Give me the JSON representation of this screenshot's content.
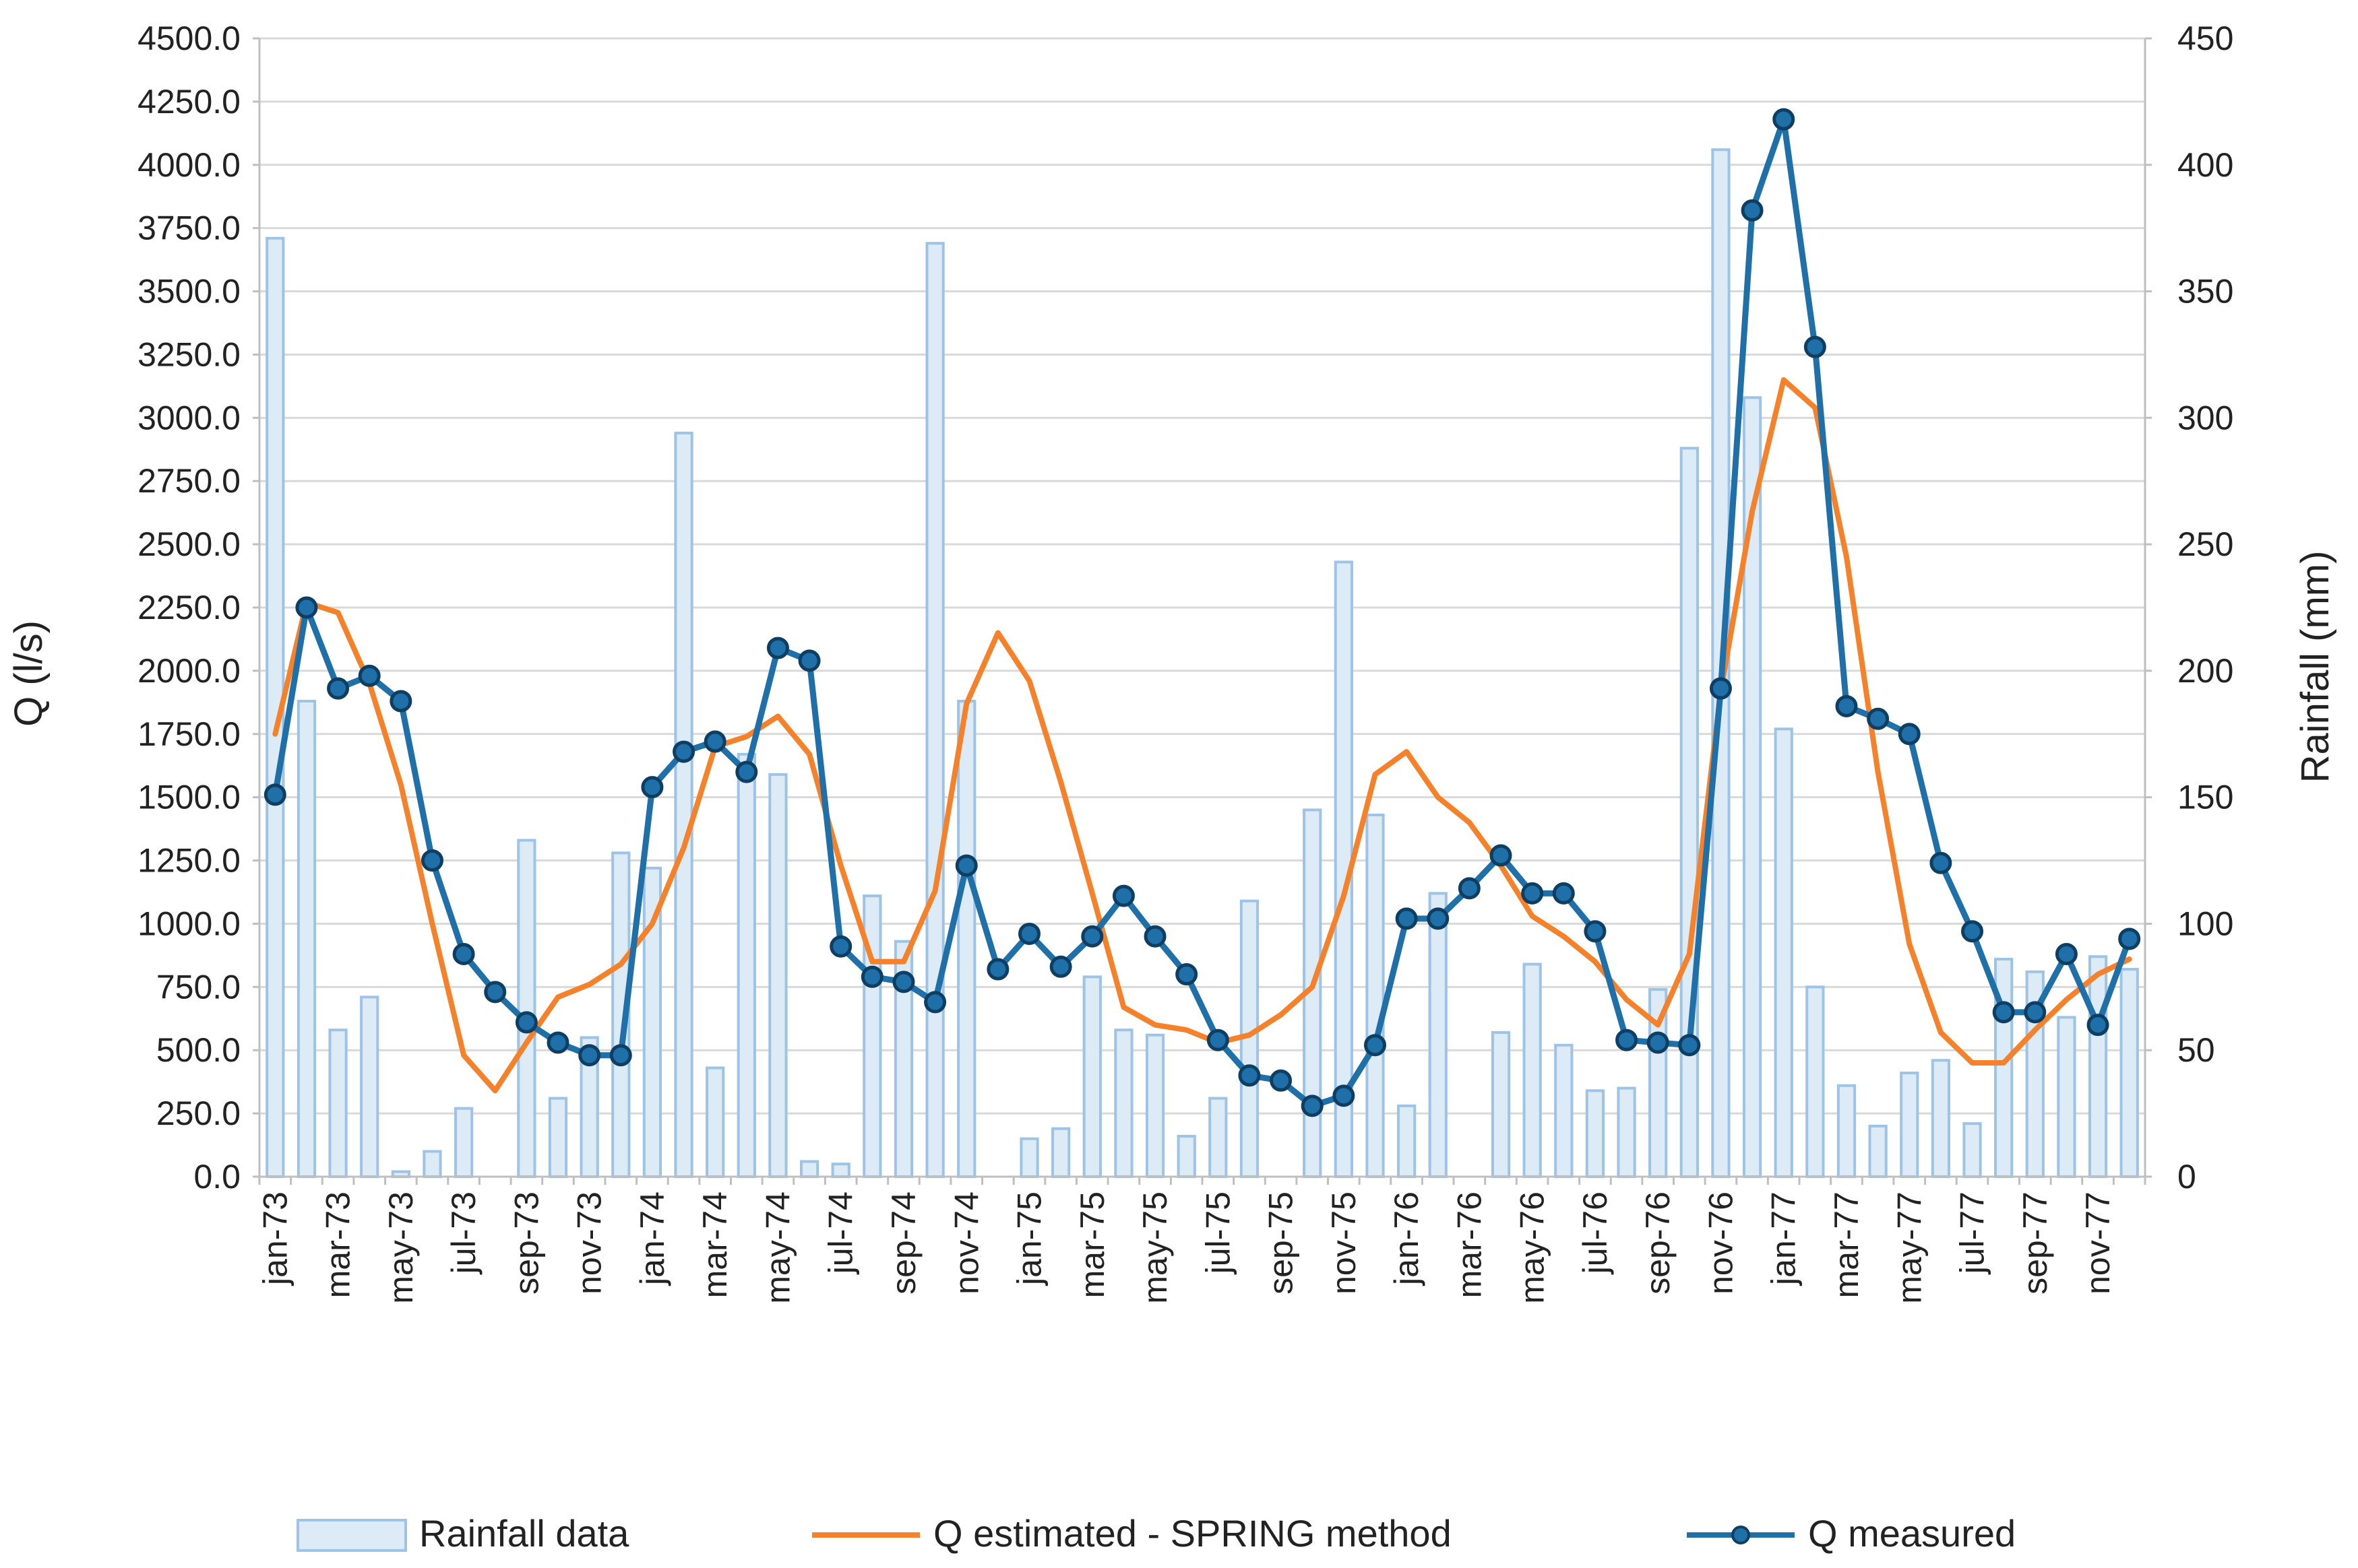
{
  "chart_data": {
    "type": "bar",
    "categories": [
      "jan-73",
      "feb-73",
      "mar-73",
      "apr-73",
      "may-73",
      "jun-73",
      "jul-73",
      "aug-73",
      "sep-73",
      "oct-73",
      "nov-73",
      "dec-73",
      "jan-74",
      "feb-74",
      "mar-74",
      "apr-74",
      "may-74",
      "jun-74",
      "jul-74",
      "aug-74",
      "sep-74",
      "oct-74",
      "nov-74",
      "dec-74",
      "jan-75",
      "feb-75",
      "mar-75",
      "apr-75",
      "may-75",
      "jun-75",
      "jul-75",
      "aug-75",
      "sep-75",
      "oct-75",
      "nov-75",
      "dec-75",
      "jan-76",
      "feb-76",
      "mar-76",
      "apr-76",
      "may-76",
      "jun-76",
      "jul-76",
      "aug-76",
      "sep-76",
      "oct-76",
      "nov-76",
      "dec-76",
      "jan-77",
      "feb-77",
      "mar-77",
      "apr-77",
      "may-77",
      "jun-77",
      "jul-77",
      "aug-77",
      "sep-77",
      "oct-77",
      "nov-77",
      "dec-77"
    ],
    "tick_labels": [
      "jan-73",
      "mar-73",
      "may-73",
      "jul-73",
      "sep-73",
      "nov-73",
      "jan-74",
      "mar-74",
      "may-74",
      "jul-74",
      "sep-74",
      "nov-74",
      "jan-75",
      "mar-75",
      "may-75",
      "jul-75",
      "sep-75",
      "nov-75",
      "jan-76",
      "mar-76",
      "may-76",
      "jul-76",
      "sep-76",
      "nov-76",
      "jan-77",
      "mar-77",
      "may-77",
      "jul-77",
      "sep-77",
      "nov-77"
    ],
    "ylabel": "Q (l/s)",
    "y2label": "Rainfall (mm)",
    "ylim": [
      0,
      4500
    ],
    "y2lim": [
      0,
      450
    ],
    "yticks": [
      "0.0",
      "250.0",
      "500.0",
      "750.0",
      "1000.0",
      "1250.0",
      "1500.0",
      "1750.0",
      "2000.0",
      "2250.0",
      "2500.0",
      "2750.0",
      "3000.0",
      "3250.0",
      "3500.0",
      "3750.0",
      "4000.0",
      "4250.0",
      "4500.0"
    ],
    "y2ticks": [
      "0",
      "50",
      "100",
      "150",
      "200",
      "250",
      "300",
      "350",
      "400",
      "450"
    ],
    "grid": "horizontal",
    "legend_position": "bottom",
    "series": [
      {
        "name": "Rainfall data",
        "type": "bar",
        "axis": "right",
        "color": "#9dc3e6",
        "values": [
          371,
          188,
          58,
          71,
          2,
          10,
          27,
          0,
          133,
          31,
          55,
          128,
          122,
          294,
          43,
          167,
          159,
          6,
          5,
          111,
          93,
          369,
          188,
          0,
          15,
          19,
          79,
          58,
          56,
          16,
          31,
          109,
          0,
          145,
          243,
          143,
          28,
          112,
          0,
          57,
          84,
          52,
          34,
          35,
          74,
          288,
          406,
          308,
          177,
          75,
          36,
          20,
          41,
          46,
          21,
          86,
          81,
          63,
          87,
          82
        ]
      },
      {
        "name": "Q estimated - SPRING method",
        "type": "line",
        "axis": "left",
        "color": "#f5822a",
        "values": [
          1750,
          2270,
          2230,
          1950,
          1550,
          1000,
          480,
          340,
          530,
          710,
          760,
          840,
          1000,
          1300,
          1700,
          1740,
          1820,
          1670,
          1230,
          850,
          850,
          1130,
          1870,
          2150,
          1960,
          1560,
          1120,
          670,
          600,
          580,
          530,
          560,
          640,
          750,
          1110,
          1590,
          1680,
          1500,
          1400,
          1230,
          1030,
          950,
          850,
          700,
          600,
          880,
          1920,
          2630,
          3150,
          3040,
          2450,
          1600,
          920,
          570,
          450,
          450,
          580,
          700,
          800,
          860
        ]
      },
      {
        "name": "Q measured",
        "type": "line",
        "axis": "left",
        "color": "#1f6fa9",
        "marker": "circle",
        "values": [
          1510,
          2250,
          1930,
          1980,
          1880,
          1250,
          880,
          730,
          610,
          530,
          480,
          480,
          1540,
          1680,
          1720,
          1600,
          2090,
          2040,
          910,
          790,
          770,
          690,
          1230,
          820,
          960,
          830,
          950,
          1110,
          950,
          800,
          540,
          400,
          380,
          280,
          320,
          520,
          1020,
          1020,
          1140,
          1270,
          1120,
          1120,
          970,
          540,
          530,
          520,
          1930,
          3820,
          4180,
          3280,
          1860,
          1810,
          1750,
          1240,
          970,
          650,
          650,
          880,
          600,
          940
        ]
      }
    ]
  }
}
